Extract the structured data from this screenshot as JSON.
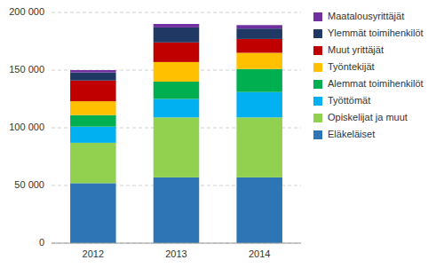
{
  "chart_data": {
    "type": "bar",
    "stacked": true,
    "categories": [
      "2012",
      "2013",
      "2014"
    ],
    "series": [
      {
        "name": "Eläkeläiset",
        "color": "#2E75B6",
        "values": [
          52000,
          57000,
          57000
        ]
      },
      {
        "name": "Opiskelijat ja muut",
        "color": "#92D050",
        "values": [
          35000,
          52000,
          52000
        ]
      },
      {
        "name": "Työttömät",
        "color": "#00B0F0",
        "values": [
          14000,
          16000,
          22000
        ]
      },
      {
        "name": "Alemmat toimihenkilöt",
        "color": "#00B050",
        "values": [
          10000,
          15000,
          20000
        ]
      },
      {
        "name": "Työntekijät",
        "color": "#FFC000",
        "values": [
          12000,
          17000,
          14000
        ]
      },
      {
        "name": "Muut yrittäjät",
        "color": "#C00000",
        "values": [
          18000,
          17000,
          12000
        ]
      },
      {
        "name": "Ylemmät toimihenkilöt",
        "color": "#1F3864",
        "values": [
          7000,
          13000,
          9000
        ]
      },
      {
        "name": "Maatalousyrittäjät",
        "color": "#7030A0",
        "values": [
          2000,
          3000,
          3000
        ]
      }
    ],
    "ylim": [
      0,
      200000
    ],
    "yticks": [
      0,
      {
        "value": 50000,
        "label": "50 000"
      },
      {
        "value": 100000,
        "label": "100 000"
      },
      {
        "value": 150000,
        "label": "150 000"
      },
      {
        "value": 200000,
        "label": "200 000"
      }
    ],
    "grid": true,
    "legend": "right"
  }
}
